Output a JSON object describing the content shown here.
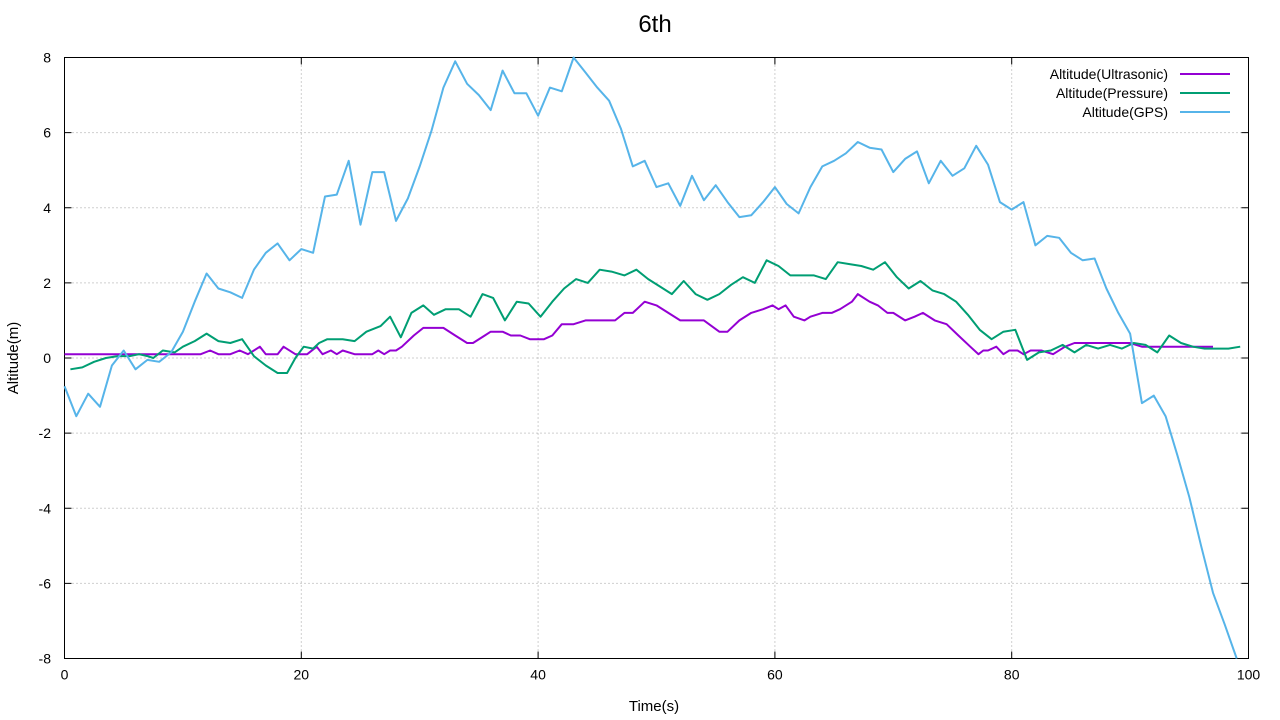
{
  "chart_data": {
    "type": "line",
    "title": "6th",
    "xlabel": "Time(s)",
    "ylabel": "Altitude(m)",
    "xlim": [
      0,
      100
    ],
    "ylim": [
      -8,
      8
    ],
    "x_ticks": [
      "0",
      "20",
      "40",
      "60",
      "80",
      "100"
    ],
    "y_ticks": [
      "8",
      "6",
      "4",
      "2",
      "0",
      "-2",
      "-4",
      "-6",
      "-8"
    ],
    "grid": "dotted",
    "legend_position": "top-right",
    "series": [
      {
        "name": "Altitude(Ultrasonic)",
        "color": "#9400d3",
        "points": [
          [
            0,
            0.1
          ],
          [
            2,
            0.1
          ],
          [
            4,
            0.1
          ],
          [
            6,
            0.1
          ],
          [
            8,
            0.1
          ],
          [
            10,
            0.1
          ],
          [
            11.5,
            0.1
          ],
          [
            12.3,
            0.2
          ],
          [
            13,
            0.1
          ],
          [
            14,
            0.1
          ],
          [
            14.8,
            0.2
          ],
          [
            15.5,
            0.1
          ],
          [
            16.5,
            0.3
          ],
          [
            17,
            0.1
          ],
          [
            18,
            0.1
          ],
          [
            18.5,
            0.3
          ],
          [
            19.5,
            0.1
          ],
          [
            20.5,
            0.1
          ],
          [
            21.3,
            0.3
          ],
          [
            21.8,
            0.1
          ],
          [
            22.5,
            0.2
          ],
          [
            23,
            0.1
          ],
          [
            23.5,
            0.2
          ],
          [
            24.5,
            0.1
          ],
          [
            26,
            0.1
          ],
          [
            26.5,
            0.2
          ],
          [
            27,
            0.1
          ],
          [
            27.5,
            0.2
          ],
          [
            28,
            0.2
          ],
          [
            28.5,
            0.3
          ],
          [
            29.5,
            0.6
          ],
          [
            30.3,
            0.8
          ],
          [
            32,
            0.8
          ],
          [
            33,
            0.6
          ],
          [
            34,
            0.4
          ],
          [
            34.5,
            0.4
          ],
          [
            35.5,
            0.6
          ],
          [
            36,
            0.7
          ],
          [
            37,
            0.7
          ],
          [
            37.7,
            0.6
          ],
          [
            38.5,
            0.6
          ],
          [
            39.3,
            0.5
          ],
          [
            40.5,
            0.5
          ],
          [
            41.2,
            0.6
          ],
          [
            42,
            0.9
          ],
          [
            43,
            0.9
          ],
          [
            44,
            1.0
          ],
          [
            46.5,
            1.0
          ],
          [
            47.3,
            1.2
          ],
          [
            48,
            1.2
          ],
          [
            49,
            1.5
          ],
          [
            50,
            1.4
          ],
          [
            52,
            1.0
          ],
          [
            54,
            1.0
          ],
          [
            55.3,
            0.7
          ],
          [
            56,
            0.7
          ],
          [
            57,
            1.0
          ],
          [
            58,
            1.2
          ],
          [
            59,
            1.3
          ],
          [
            59.8,
            1.4
          ],
          [
            60.3,
            1.3
          ],
          [
            60.9,
            1.4
          ],
          [
            61.6,
            1.1
          ],
          [
            62.5,
            1.0
          ],
          [
            63,
            1.1
          ],
          [
            64,
            1.2
          ],
          [
            64.8,
            1.2
          ],
          [
            65.5,
            1.3
          ],
          [
            66.5,
            1.5
          ],
          [
            67,
            1.7
          ],
          [
            68,
            1.5
          ],
          [
            68.7,
            1.4
          ],
          [
            69.5,
            1.2
          ],
          [
            70,
            1.2
          ],
          [
            71,
            1.0
          ],
          [
            71.8,
            1.1
          ],
          [
            72.5,
            1.2
          ],
          [
            73.5,
            1.0
          ],
          [
            74.5,
            0.9
          ],
          [
            75.5,
            0.6
          ],
          [
            76.5,
            0.3
          ],
          [
            77.2,
            0.1
          ],
          [
            77.6,
            0.2
          ],
          [
            78,
            0.2
          ],
          [
            78.7,
            0.3
          ],
          [
            79.3,
            0.1
          ],
          [
            79.8,
            0.2
          ],
          [
            80.5,
            0.2
          ],
          [
            81,
            0.1
          ],
          [
            81.6,
            0.2
          ],
          [
            82.5,
            0.2
          ],
          [
            83.5,
            0.1
          ],
          [
            84.5,
            0.3
          ],
          [
            85.3,
            0.4
          ],
          [
            88,
            0.4
          ],
          [
            89,
            0.4
          ],
          [
            90,
            0.4
          ],
          [
            91,
            0.3
          ],
          [
            92,
            0.3
          ],
          [
            93,
            0.3
          ],
          [
            94.5,
            0.3
          ],
          [
            96,
            0.3
          ],
          [
            97,
            0.3
          ]
        ]
      },
      {
        "name": "Altitude(Pressure)",
        "color": "#009e73",
        "points": [
          [
            0.5,
            -0.3
          ],
          [
            1.5,
            -0.25
          ],
          [
            2.5,
            -0.1
          ],
          [
            3.5,
            0.0
          ],
          [
            4.5,
            0.05
          ],
          [
            5.5,
            0.05
          ],
          [
            6.3,
            0.1
          ],
          [
            7,
            0.05
          ],
          [
            7.5,
            0.0
          ],
          [
            8.3,
            0.2
          ],
          [
            9.3,
            0.15
          ],
          [
            10,
            0.3
          ],
          [
            11,
            0.45
          ],
          [
            12,
            0.65
          ],
          [
            13,
            0.45
          ],
          [
            14,
            0.4
          ],
          [
            15,
            0.5
          ],
          [
            16,
            0.05
          ],
          [
            17,
            -0.2
          ],
          [
            18,
            -0.4
          ],
          [
            18.8,
            -0.4
          ],
          [
            19.5,
            0.0
          ],
          [
            20.2,
            0.3
          ],
          [
            21,
            0.25
          ],
          [
            21.5,
            0.4
          ],
          [
            22.2,
            0.5
          ],
          [
            23.5,
            0.5
          ],
          [
            24.5,
            0.45
          ],
          [
            25.5,
            0.7
          ],
          [
            26.7,
            0.85
          ],
          [
            27.5,
            1.1
          ],
          [
            28.4,
            0.55
          ],
          [
            29.3,
            1.2
          ],
          [
            30.3,
            1.4
          ],
          [
            31.2,
            1.15
          ],
          [
            32.2,
            1.3
          ],
          [
            33.3,
            1.3
          ],
          [
            34.3,
            1.1
          ],
          [
            35.3,
            1.7
          ],
          [
            36.2,
            1.6
          ],
          [
            37.2,
            1.0
          ],
          [
            38.2,
            1.5
          ],
          [
            39.2,
            1.45
          ],
          [
            40.2,
            1.1
          ],
          [
            41.2,
            1.5
          ],
          [
            42.2,
            1.85
          ],
          [
            43.2,
            2.1
          ],
          [
            44.2,
            2.0
          ],
          [
            45.2,
            2.35
          ],
          [
            46.2,
            2.3
          ],
          [
            47.3,
            2.2
          ],
          [
            48.3,
            2.35
          ],
          [
            49.3,
            2.1
          ],
          [
            50.3,
            1.9
          ],
          [
            51.3,
            1.7
          ],
          [
            52.3,
            2.05
          ],
          [
            53.3,
            1.7
          ],
          [
            54.3,
            1.55
          ],
          [
            55.3,
            1.7
          ],
          [
            56.3,
            1.95
          ],
          [
            57.3,
            2.15
          ],
          [
            58.3,
            2.0
          ],
          [
            59.3,
            2.6
          ],
          [
            60.3,
            2.45
          ],
          [
            61.3,
            2.2
          ],
          [
            62.3,
            2.2
          ],
          [
            63.3,
            2.2
          ],
          [
            64.3,
            2.1
          ],
          [
            65.3,
            2.55
          ],
          [
            66.3,
            2.5
          ],
          [
            67.3,
            2.45
          ],
          [
            68.3,
            2.35
          ],
          [
            69.3,
            2.55
          ],
          [
            70.3,
            2.15
          ],
          [
            71.3,
            1.85
          ],
          [
            72.3,
            2.05
          ],
          [
            73.3,
            1.8
          ],
          [
            74.3,
            1.7
          ],
          [
            75.3,
            1.5
          ],
          [
            76.3,
            1.15
          ],
          [
            77.3,
            0.75
          ],
          [
            78.3,
            0.5
          ],
          [
            79.3,
            0.7
          ],
          [
            80.3,
            0.75
          ],
          [
            81.3,
            -0.05
          ],
          [
            82.3,
            0.15
          ],
          [
            83.3,
            0.2
          ],
          [
            84.3,
            0.35
          ],
          [
            85.3,
            0.15
          ],
          [
            86.3,
            0.35
          ],
          [
            87.3,
            0.25
          ],
          [
            88.3,
            0.35
          ],
          [
            89.3,
            0.25
          ],
          [
            90.3,
            0.4
          ],
          [
            91.3,
            0.35
          ],
          [
            92.3,
            0.15
          ],
          [
            93.3,
            0.6
          ],
          [
            94.3,
            0.4
          ],
          [
            95.3,
            0.3
          ],
          [
            96.3,
            0.25
          ],
          [
            97.3,
            0.25
          ],
          [
            98.3,
            0.25
          ],
          [
            99.3,
            0.3
          ]
        ]
      },
      {
        "name": "Altitude(GPS)",
        "color": "#56b4e9",
        "points": [
          [
            0,
            -0.75
          ],
          [
            1,
            -1.55
          ],
          [
            2,
            -0.95
          ],
          [
            3,
            -1.3
          ],
          [
            4,
            -0.2
          ],
          [
            5,
            0.2
          ],
          [
            6,
            -0.3
          ],
          [
            7,
            -0.05
          ],
          [
            8,
            -0.1
          ],
          [
            9,
            0.15
          ],
          [
            10,
            0.7
          ],
          [
            11,
            1.5
          ],
          [
            12,
            2.25
          ],
          [
            13,
            1.85
          ],
          [
            14,
            1.75
          ],
          [
            15,
            1.6
          ],
          [
            16,
            2.35
          ],
          [
            17,
            2.8
          ],
          [
            18,
            3.05
          ],
          [
            19,
            2.6
          ],
          [
            20,
            2.9
          ],
          [
            21,
            2.8
          ],
          [
            22,
            4.3
          ],
          [
            23,
            4.35
          ],
          [
            24,
            5.25
          ],
          [
            25,
            3.55
          ],
          [
            26,
            4.95
          ],
          [
            27,
            4.95
          ],
          [
            28,
            3.65
          ],
          [
            29,
            4.25
          ],
          [
            30,
            5.1
          ],
          [
            31,
            6.05
          ],
          [
            32,
            7.2
          ],
          [
            33,
            7.9
          ],
          [
            34,
            7.3
          ],
          [
            35,
            7.0
          ],
          [
            36,
            6.6
          ],
          [
            37,
            7.65
          ],
          [
            38,
            7.05
          ],
          [
            39,
            7.05
          ],
          [
            40,
            6.45
          ],
          [
            41,
            7.2
          ],
          [
            42,
            7.1
          ],
          [
            43,
            8.0
          ],
          [
            44,
            7.6
          ],
          [
            45,
            7.2
          ],
          [
            46,
            6.85
          ],
          [
            47,
            6.1
          ],
          [
            48,
            5.1
          ],
          [
            49,
            5.25
          ],
          [
            50,
            4.55
          ],
          [
            51,
            4.65
          ],
          [
            52,
            4.05
          ],
          [
            53,
            4.85
          ],
          [
            54,
            4.2
          ],
          [
            55,
            4.6
          ],
          [
            56,
            4.15
          ],
          [
            57,
            3.75
          ],
          [
            58,
            3.8
          ],
          [
            59,
            4.15
          ],
          [
            60,
            4.55
          ],
          [
            61,
            4.1
          ],
          [
            62,
            3.85
          ],
          [
            63,
            4.55
          ],
          [
            64,
            5.1
          ],
          [
            65,
            5.25
          ],
          [
            66,
            5.45
          ],
          [
            67,
            5.75
          ],
          [
            68,
            5.6
          ],
          [
            69,
            5.55
          ],
          [
            70,
            4.95
          ],
          [
            71,
            5.3
          ],
          [
            72,
            5.5
          ],
          [
            73,
            4.65
          ],
          [
            74,
            5.25
          ],
          [
            75,
            4.85
          ],
          [
            76,
            5.05
          ],
          [
            77,
            5.65
          ],
          [
            78,
            5.15
          ],
          [
            79,
            4.15
          ],
          [
            80,
            3.95
          ],
          [
            81,
            4.15
          ],
          [
            82,
            3.0
          ],
          [
            83,
            3.25
          ],
          [
            84,
            3.2
          ],
          [
            85,
            2.8
          ],
          [
            86,
            2.6
          ],
          [
            87,
            2.65
          ],
          [
            88,
            1.85
          ],
          [
            89,
            1.2
          ],
          [
            90,
            0.65
          ],
          [
            91,
            -1.2
          ],
          [
            92,
            -1.0
          ],
          [
            93,
            -1.55
          ],
          [
            94,
            -2.6
          ],
          [
            95,
            -3.7
          ],
          [
            96,
            -5.0
          ],
          [
            97,
            -6.25
          ],
          [
            98,
            -7.1
          ],
          [
            99,
            -8.0
          ]
        ]
      }
    ]
  }
}
